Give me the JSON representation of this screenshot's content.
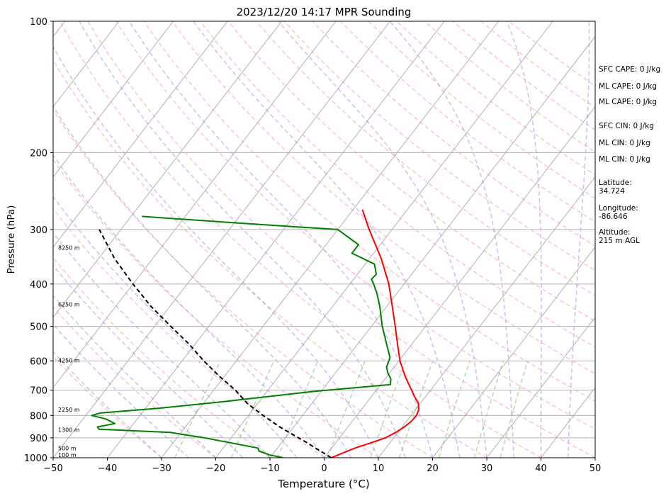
{
  "chart_data": {
    "type": "line",
    "title": "2023/12/20 14:17 MPR Sounding",
    "xlabel": "Temperature (°C)",
    "ylabel": "Pressure (hPa)",
    "xlim": [
      -50,
      50
    ],
    "ylim": [
      1000,
      100
    ],
    "y_scale": "log",
    "x_ticks": [
      "−50",
      "−40",
      "−30",
      "−20",
      "−10",
      "0",
      "10",
      "20",
      "30",
      "40",
      "50"
    ],
    "y_ticks": [
      "100",
      "200",
      "300",
      "400",
      "500",
      "600",
      "700",
      "800",
      "900",
      "1000"
    ],
    "grid": true,
    "series": [
      {
        "color": "#ff0000",
        "points": [
          {
            "p": 1000,
            "t": 1.3
          },
          {
            "p": 975,
            "t": 2.8
          },
          {
            "p": 950,
            "t": 4.3
          },
          {
            "p": 925,
            "t": 6.5
          },
          {
            "p": 900,
            "t": 8.5
          },
          {
            "p": 875,
            "t": 9.6
          },
          {
            "p": 850,
            "t": 10.4
          },
          {
            "p": 825,
            "t": 10.9
          },
          {
            "p": 800,
            "t": 11.0
          },
          {
            "p": 775,
            "t": 10.6
          },
          {
            "p": 750,
            "t": 9.6
          },
          {
            "p": 725,
            "t": 8.0
          },
          {
            "p": 700,
            "t": 6.5
          },
          {
            "p": 675,
            "t": 4.9
          },
          {
            "p": 650,
            "t": 3.3
          },
          {
            "p": 600,
            "t": 0.2
          },
          {
            "p": 550,
            "t": -2.6
          },
          {
            "p": 500,
            "t": -5.6
          },
          {
            "p": 450,
            "t": -9.0
          },
          {
            "p": 400,
            "t": -12.8
          },
          {
            "p": 350,
            "t": -17.8
          },
          {
            "p": 300,
            "t": -24.2
          },
          {
            "p": 270,
            "t": -28.3
          }
        ]
      },
      {
        "color": "#008000",
        "points": [
          {
            "p": 1000,
            "t": -7.6
          },
          {
            "p": 985,
            "t": -10.5
          },
          {
            "p": 965,
            "t": -13.0
          },
          {
            "p": 950,
            "t": -13.6
          },
          {
            "p": 900,
            "t": -25.0
          },
          {
            "p": 875,
            "t": -32.0
          },
          {
            "p": 860,
            "t": -45.6
          },
          {
            "p": 850,
            "t": -46.2
          },
          {
            "p": 835,
            "t": -43.5
          },
          {
            "p": 815,
            "t": -45.8
          },
          {
            "p": 800,
            "t": -48.9
          },
          {
            "p": 790,
            "t": -47.7
          },
          {
            "p": 770,
            "t": -37.5
          },
          {
            "p": 745,
            "t": -27.0
          },
          {
            "p": 705,
            "t": -11.5
          },
          {
            "p": 680,
            "t": 1.8
          },
          {
            "p": 660,
            "t": 1.1
          },
          {
            "p": 640,
            "t": -0.3
          },
          {
            "p": 620,
            "t": -1.4
          },
          {
            "p": 590,
            "t": -2.1
          },
          {
            "p": 550,
            "t": -4.6
          },
          {
            "p": 500,
            "t": -8.0
          },
          {
            "p": 450,
            "t": -11.3
          },
          {
            "p": 420,
            "t": -13.7
          },
          {
            "p": 400,
            "t": -15.6
          },
          {
            "p": 390,
            "t": -16.7
          },
          {
            "p": 380,
            "t": -16.5
          },
          {
            "p": 360,
            "t": -18.3
          },
          {
            "p": 340,
            "t": -24.0
          },
          {
            "p": 325,
            "t": -24.0
          },
          {
            "p": 300,
            "t": -30.0
          },
          {
            "p": 290,
            "t": -49.3
          },
          {
            "p": 280,
            "t": -68.0
          }
        ]
      },
      {
        "color": "#000000",
        "dashed": true,
        "points": [
          {
            "p": 1000,
            "t": 1.3
          },
          {
            "p": 975,
            "t": -0.8
          },
          {
            "p": 950,
            "t": -3.0
          },
          {
            "p": 925,
            "t": -5.2
          },
          {
            "p": 900,
            "t": -7.6
          },
          {
            "p": 850,
            "t": -12.6
          },
          {
            "p": 800,
            "t": -17.3
          },
          {
            "p": 750,
            "t": -22.0
          },
          {
            "p": 700,
            "t": -26.0
          },
          {
            "p": 650,
            "t": -31.0
          },
          {
            "p": 600,
            "t": -36.0
          },
          {
            "p": 550,
            "t": -41.0
          },
          {
            "p": 500,
            "t": -47.0
          },
          {
            "p": 450,
            "t": -53.5
          },
          {
            "p": 400,
            "t": -60.0
          },
          {
            "p": 350,
            "t": -67.0
          },
          {
            "p": 300,
            "t": -74.0
          }
        ]
      }
    ],
    "height_labels": [
      {
        "p": 330,
        "text": "8250 m"
      },
      {
        "p": 445,
        "text": "6250 m"
      },
      {
        "p": 598,
        "text": "4250 m"
      },
      {
        "p": 775,
        "text": "2250 m"
      },
      {
        "p": 862,
        "text": "1300 m"
      },
      {
        "p": 950,
        "text": "500 m"
      },
      {
        "p": 985,
        "text": "100 m"
      }
    ],
    "annotations": {
      "sfc_cape": "SFC CAPE: 0 J/kg",
      "ml_cape_1": "ML CAPE: 0 J/kg",
      "ml_cape_2": "ML CAPE: 0 J/kg",
      "sfc_cin": "SFC CIN: 0 J/kg",
      "ml_cin_1": "ML CIN: 0 J/kg",
      "ml_cin_2": "ML CIN: 0 J/kg",
      "latitude": "Latitude:\n34.724",
      "longitude": "Longitude:\n-86.646",
      "altitude": "Altitude:\n215 m AGL"
    }
  }
}
